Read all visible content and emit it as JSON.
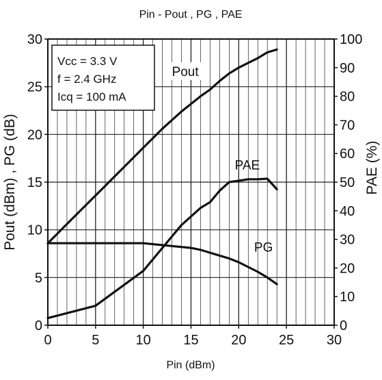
{
  "chart_data": {
    "type": "line",
    "title": "Pin - Pout , PG , PAE",
    "xlabel": "Pin (dBm)",
    "ylabel_left": "Pout (dBm) , PG (dB)",
    "ylabel_right": "PAE (%)",
    "xlim": [
      0,
      30
    ],
    "ylim_left": [
      0,
      30
    ],
    "ylim_right": [
      0,
      100
    ],
    "x_ticks": [
      "0",
      "5",
      "10",
      "15",
      "20",
      "25",
      "30"
    ],
    "y_left_ticks": [
      "0",
      "5",
      "10",
      "15",
      "20",
      "25",
      "30"
    ],
    "y_right_ticks": [
      "0",
      "10",
      "20",
      "30",
      "40",
      "50",
      "60",
      "70",
      "80",
      "90",
      "100"
    ],
    "grid": true,
    "conditions": [
      "Vcc = 3.3 V",
      "f = 2.4 GHz",
      "Icq = 100 mA"
    ],
    "series": [
      {
        "name": "Pout",
        "axis": "left",
        "x": [
          0,
          2,
          4,
          6,
          8,
          10,
          12,
          14,
          16,
          17,
          18,
          19,
          20,
          21,
          22,
          23,
          24
        ],
        "y": [
          8.6,
          10.6,
          12.6,
          14.6,
          16.6,
          18.6,
          20.6,
          22.4,
          24.0,
          24.7,
          25.6,
          26.4,
          27.0,
          27.5,
          28.0,
          28.6,
          28.9
        ]
      },
      {
        "name": "PG",
        "axis": "left",
        "x": [
          0,
          5,
          10,
          12,
          14,
          15,
          16,
          17,
          18,
          19,
          20,
          21,
          22,
          23,
          24
        ],
        "y": [
          8.6,
          8.6,
          8.6,
          8.4,
          8.2,
          8.1,
          7.9,
          7.6,
          7.3,
          7.0,
          6.6,
          6.1,
          5.6,
          5.0,
          4.3
        ]
      },
      {
        "name": "PAE",
        "axis": "right",
        "x": [
          0,
          5,
          10,
          12,
          14,
          15,
          16,
          17,
          18,
          19,
          20,
          21,
          22,
          23,
          24
        ],
        "y": [
          2.5,
          6.8,
          19,
          27,
          35,
          38,
          41,
          43,
          47,
          50,
          50.5,
          51,
          51,
          51.2,
          47.5
        ]
      }
    ],
    "series_labels": [
      {
        "name": "Pout",
        "x": 14.4,
        "y": 26.2
      },
      {
        "name": "PAE",
        "x": 20.9,
        "y": 16.4
      },
      {
        "name": "PG",
        "x": 22.6,
        "y": 7.8
      }
    ]
  }
}
